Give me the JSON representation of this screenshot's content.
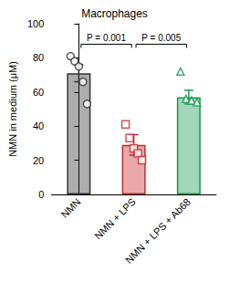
{
  "chart_data": {
    "type": "bar",
    "title": "Macrophages",
    "y_label": "NMN in medium (μM)",
    "categories": [
      "NMN",
      "NMN + LPS",
      "NMN + LPS + Ab68"
    ],
    "values": [
      71,
      29,
      57
    ],
    "errors": [
      5,
      6,
      4
    ],
    "colors": [
      "#333333",
      "#c8282c",
      "#1a9a50"
    ],
    "points": [
      {
        "marker": "circle",
        "values": [
          81,
          78,
          75,
          66,
          53
        ]
      },
      {
        "marker": "square",
        "values": [
          41,
          33,
          27,
          24,
          20
        ]
      },
      {
        "marker": "triangle",
        "values": [
          72,
          56,
          55,
          54
        ]
      }
    ],
    "comparisons": [
      {
        "from": "NMN",
        "to": "NMN + LPS",
        "label": "P = 0.001"
      },
      {
        "from": "NMN + LPS",
        "to": "NMN + LPS + Ab68",
        "label": "P = 0.005"
      }
    ],
    "ylim": [
      0,
      100
    ],
    "yticks": [
      0,
      20,
      40,
      60,
      80,
      100
    ],
    "grid": false
  }
}
